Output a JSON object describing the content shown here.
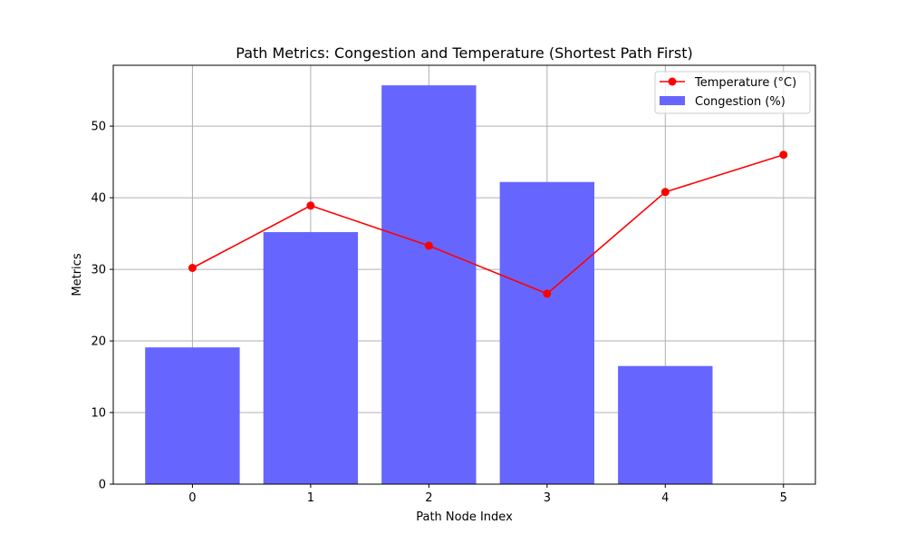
{
  "chart_data": {
    "type": "bar",
    "title": "Path Metrics: Congestion and Temperature (Shortest Path First)",
    "xlabel": "Path Node Index",
    "ylabel": "Metrics",
    "x_ticks": [
      "0",
      "1",
      "2",
      "3",
      "4",
      "5"
    ],
    "y_ticks": [
      0,
      10,
      20,
      30,
      40,
      50
    ],
    "xlim": [
      -0.67,
      5.27
    ],
    "ylim": [
      0,
      58.5
    ],
    "grid": true,
    "legend_position": "top-right",
    "series": [
      {
        "name": "Temperature (°C)",
        "type": "line",
        "marker": "circle",
        "color": "#ff0000",
        "x": [
          0,
          1,
          2,
          3,
          4,
          5
        ],
        "values": [
          30.2,
          38.9,
          33.3,
          26.6,
          40.8,
          46.0
        ]
      },
      {
        "name": "Congestion (%)",
        "type": "bar",
        "color": "#6666ff",
        "x": [
          0,
          1,
          2,
          3,
          4
        ],
        "values": [
          19.1,
          35.2,
          55.7,
          42.2,
          16.5
        ]
      }
    ]
  }
}
